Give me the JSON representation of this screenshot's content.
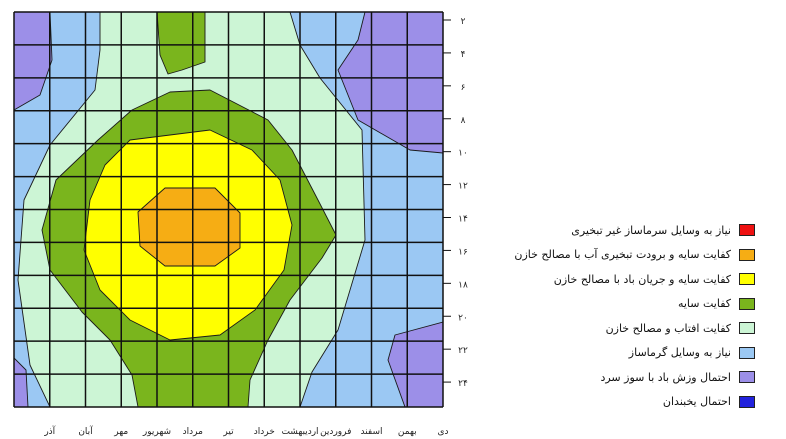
{
  "chart_data": {
    "type": "heatmap",
    "subtype": "bioclimatic zone chart",
    "x_tick_labels": [
      "دی",
      "بهمن",
      "اسفند",
      "فروردین",
      "اردیبهشت",
      "خرداد",
      "تیر",
      "مرداد",
      "شهریور",
      "مهر",
      "آبان",
      "آذر"
    ],
    "y_tick_labels": [
      "۲",
      "۴",
      "۶",
      "۸",
      "۱۰",
      "۱۲",
      "۱۴",
      "۱۶",
      "۱۸",
      "۲۰",
      "۲۲",
      "۲۴"
    ],
    "y_values": [
      2,
      4,
      6,
      8,
      10,
      12,
      14,
      16,
      18,
      20,
      22,
      24
    ],
    "grid": true,
    "legend_position": "right",
    "legend": [
      {
        "label": "نیاز به وسایل سرماساز غیر تبخیری",
        "color": "#ee1111"
      },
      {
        "label": "کفایت سایه و برودت تبخیری آب با مصالح خازن",
        "color": "#f6ad14"
      },
      {
        "label": "کفایت سایه و جریان باد با مصالح خازن",
        "color": "#ffff00"
      },
      {
        "label": "کفایت سایه",
        "color": "#7ab51d"
      },
      {
        "label": "کفایت افتاب و مصالح خازن",
        "color": "#ccf5d5"
      },
      {
        "label": "نیاز به وسایل گرماساز",
        "color": "#9bc8f3"
      },
      {
        "label": "احتمال وزش باد با سوز سرد",
        "color": "#9c8fe8"
      },
      {
        "label": "احتمال یخبندان",
        "color": "#2222dd"
      }
    ]
  }
}
